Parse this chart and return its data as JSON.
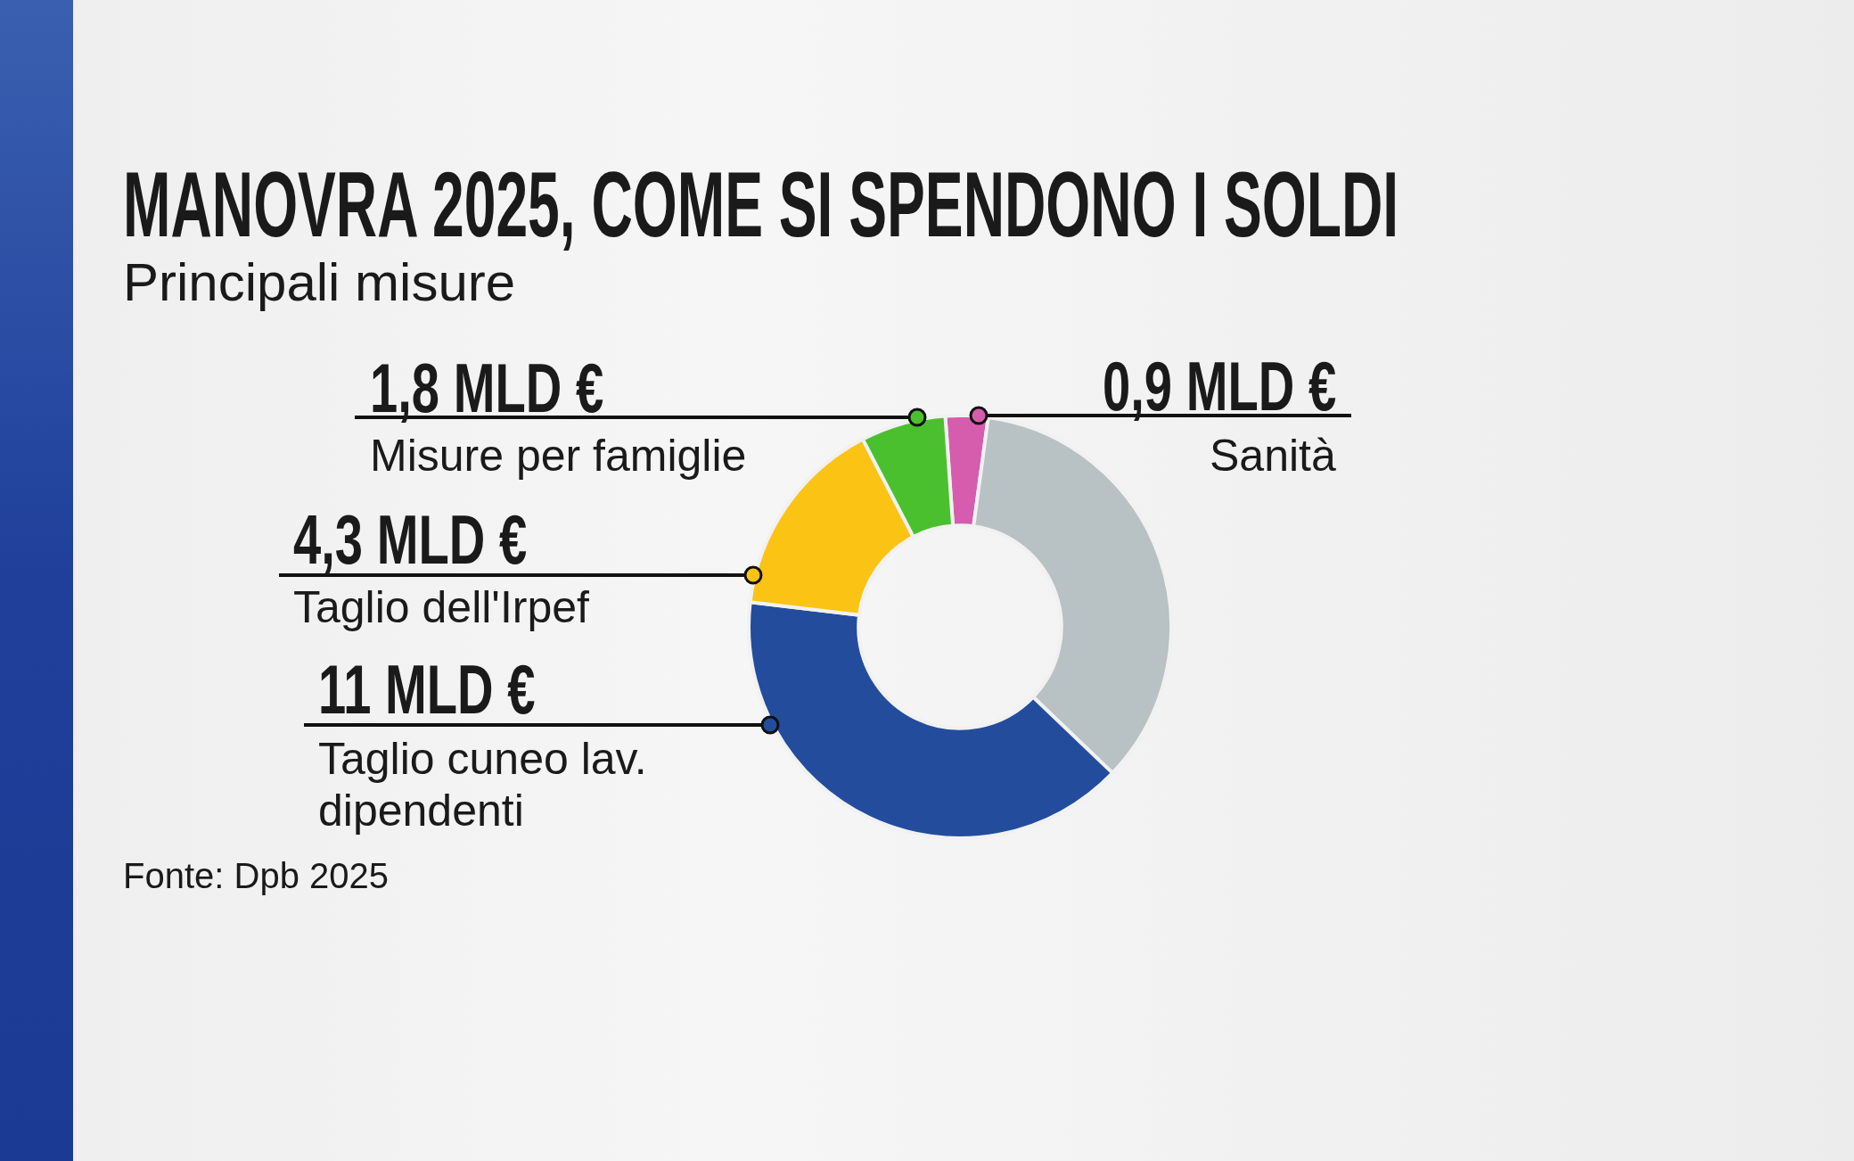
{
  "chart_data": {
    "type": "donut",
    "title": "MANOVRA 2025, COME SI SPENDONO I SOLDI",
    "subtitle": "Principali misure",
    "categories": [
      "Sanità",
      null,
      "Taglio cuneo lav. dipendenti",
      "Taglio dell'Irpef",
      "Misure per famiglie"
    ],
    "values": [
      0.9,
      9.7,
      11,
      4.3,
      1.8
    ],
    "colors": [
      "#d65cad",
      "#b8c1c3",
      "#234c9d",
      "#fbc314",
      "#4bc02e"
    ],
    "value_labels": [
      "0,9 MLD €",
      null,
      "11 MLD €",
      "4,3 MLD €",
      "1,8 MLD €"
    ],
    "legend": false,
    "annotations": [
      "Fonte: Dpb 2025"
    ]
  }
}
